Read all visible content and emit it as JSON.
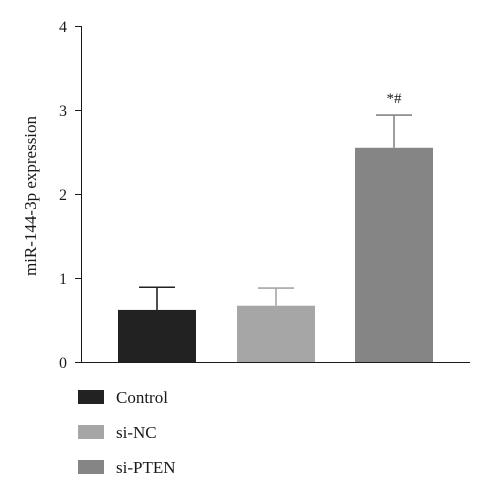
{
  "chart_data": {
    "type": "bar",
    "title": "",
    "xlabel": "",
    "ylabel": "miR-144-3p expression",
    "ylim": [
      0,
      4
    ],
    "yticks": [
      "0",
      "1",
      "2",
      "3",
      "4"
    ],
    "grid": false,
    "legend_position": "bottom-left",
    "categories": [
      "Control",
      "si-NC",
      "si-PTEN"
    ],
    "values": [
      0.62,
      0.67,
      2.55
    ],
    "error": [
      0.27,
      0.21,
      0.39
    ],
    "colors": [
      "#222222",
      "#a6a6a6",
      "#858585"
    ],
    "annotations": [
      "",
      "",
      "*#"
    ]
  }
}
